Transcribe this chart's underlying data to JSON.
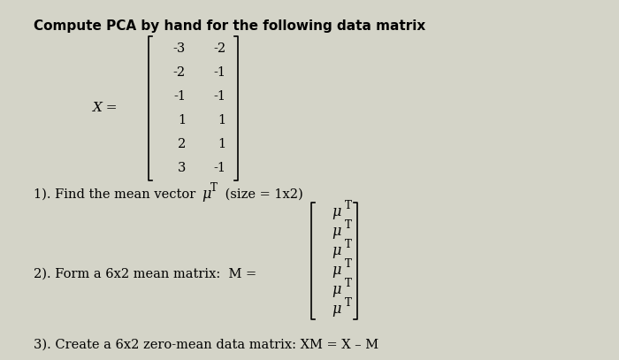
{
  "bg_color": "#d4d4c8",
  "title": "Compute PCA by hand for the following data matrix",
  "title_fontsize": 11,
  "matrix_X_rows": [
    [
      "-3",
      "-2"
    ],
    [
      "-2",
      "-1"
    ],
    [
      "-1",
      "-1"
    ],
    [
      "1",
      "1"
    ],
    [
      "2",
      "1"
    ],
    [
      "3",
      "-1"
    ]
  ],
  "step1_text_before": "1). Find the mean vector ",
  "step1_mu": "μ",
  "step1_superT": "T",
  "step1_text_after": " (size = 1x2)",
  "step2_text": "2). Form a 6x2 mean matrix:  M = ",
  "step2_mu": "μ",
  "step2_superT": "T",
  "step3_text": "3). Create a 6x2 zero-mean data matrix: XM = X – M",
  "matrix_M_nrows": 6,
  "font_main": 10.5,
  "font_matrix": 10.5,
  "font_matrix_label": 11
}
